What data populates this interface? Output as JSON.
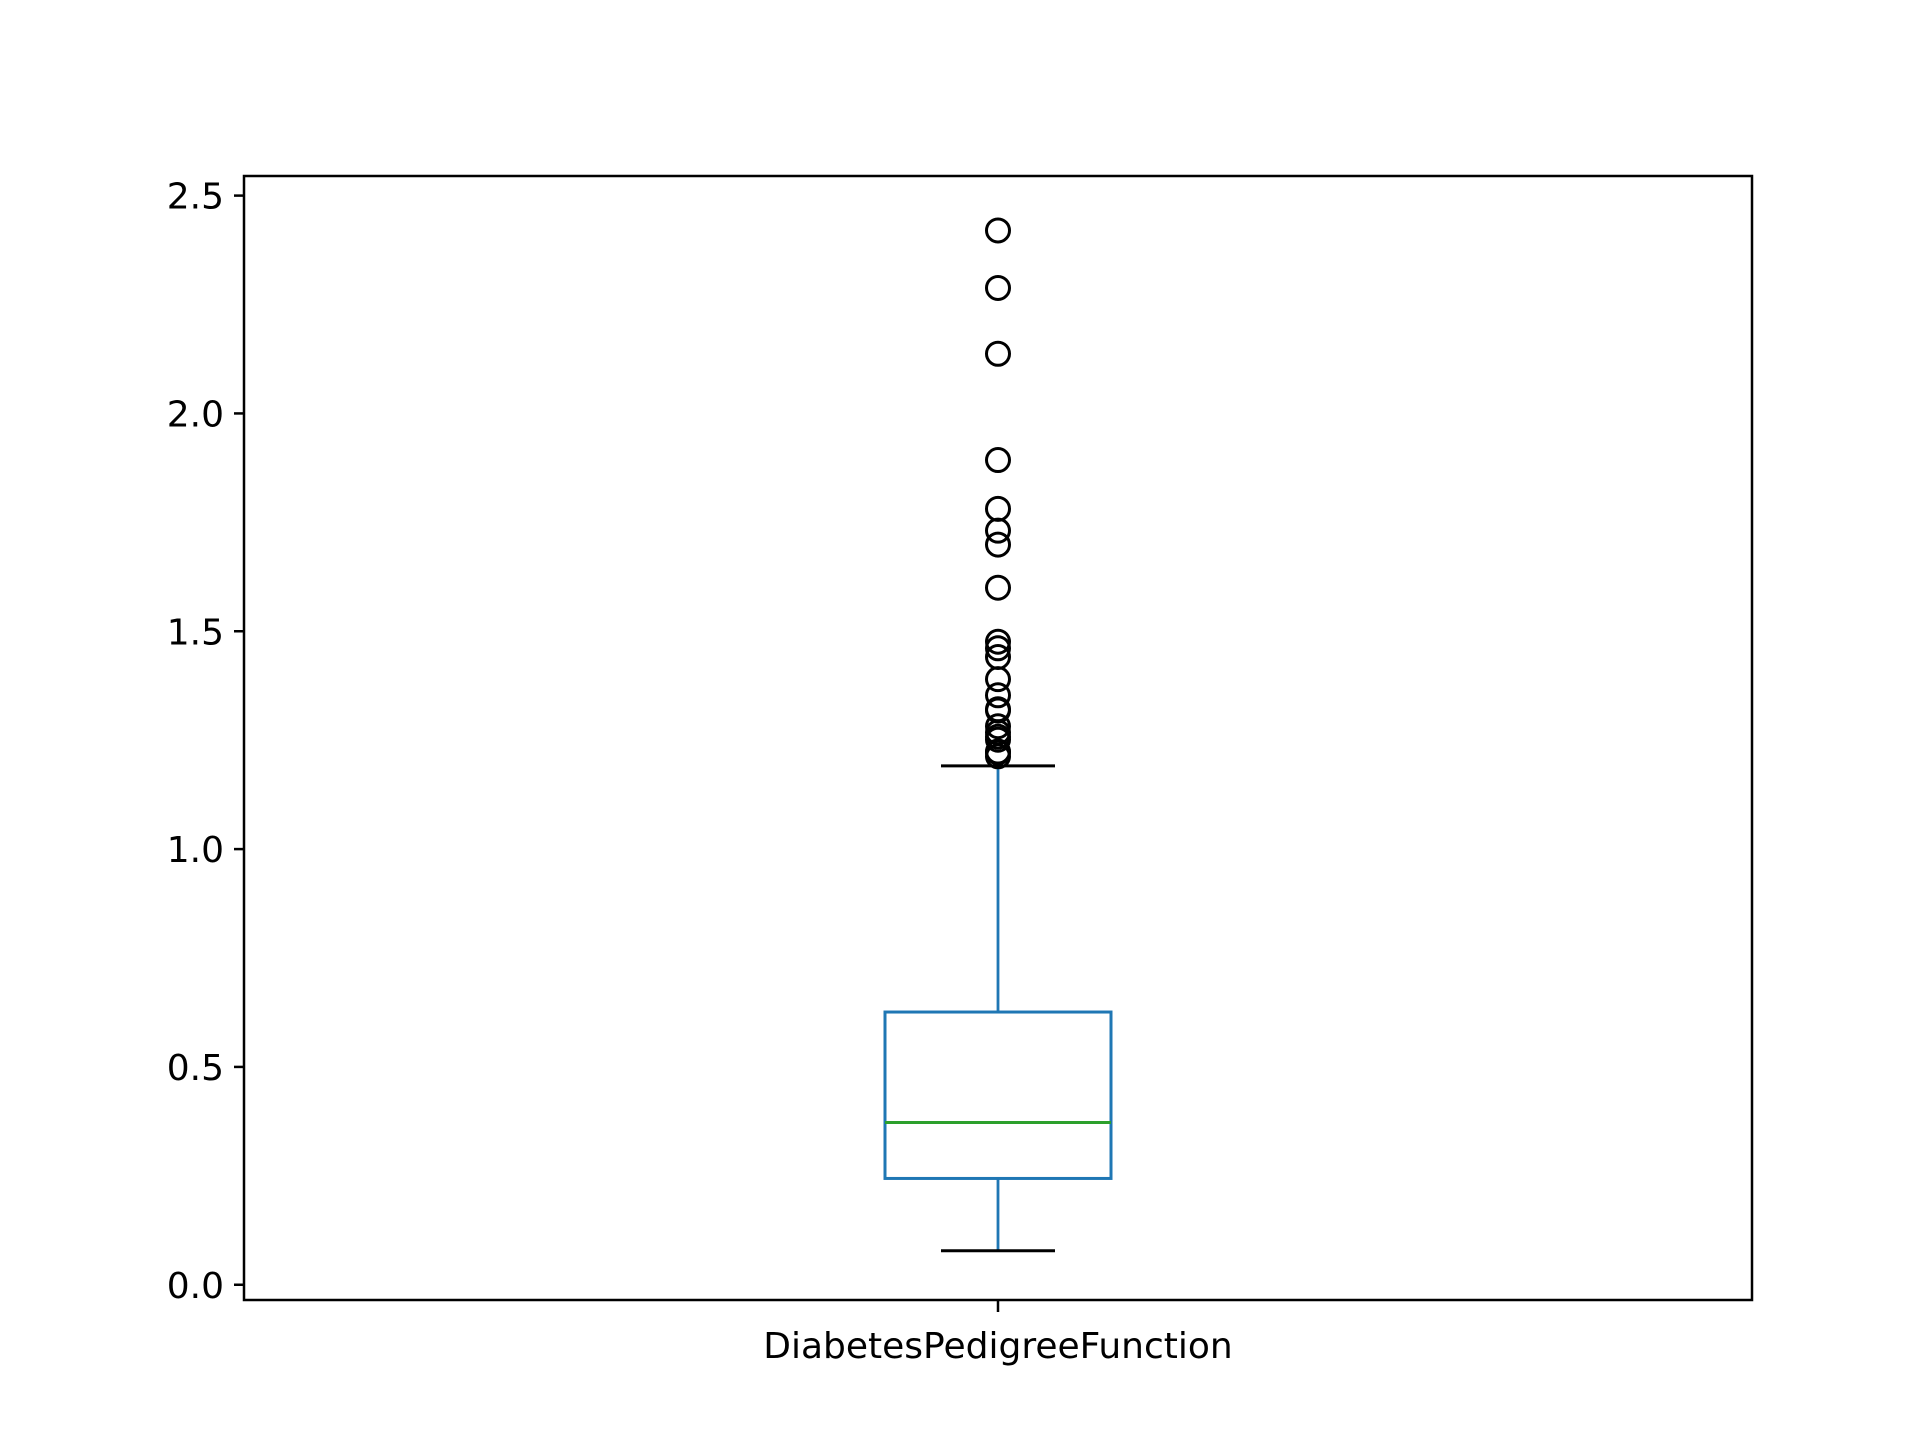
{
  "chart_data": {
    "type": "box",
    "title": "",
    "xlabel": "",
    "ylabel": "",
    "categories": [
      "DiabetesPedigreeFunction"
    ],
    "ylim": [
      -0.035,
      2.545
    ],
    "yticks": [
      "0.0",
      "0.5",
      "1.0",
      "1.5",
      "2.0",
      "2.5"
    ],
    "grid": false,
    "boxes": [
      {
        "name": "DiabetesPedigreeFunction",
        "whisker_low": 0.078,
        "q1": 0.244,
        "median": 0.3725,
        "q3": 0.626,
        "whisker_high": 1.191,
        "outliers": [
          2.42,
          2.288,
          2.137,
          1.893,
          1.781,
          1.731,
          1.699,
          1.6,
          1.476,
          1.461,
          1.441,
          1.39,
          1.353,
          1.321,
          1.318,
          1.282,
          1.268,
          1.258,
          1.251,
          1.224,
          1.222,
          1.213
        ]
      }
    ],
    "colors": {
      "box": "#1f77b4",
      "whisker": "#1f77b4",
      "caps": "#000000",
      "median": "#2ca02c",
      "flier_edge": "#000000",
      "axes": "#000000"
    }
  }
}
